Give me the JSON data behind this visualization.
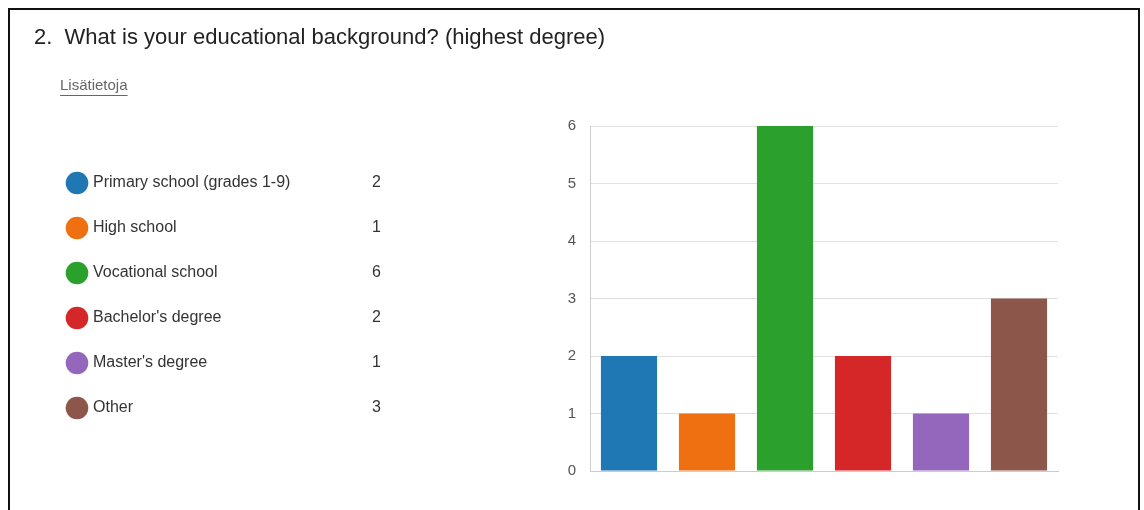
{
  "chart_data": {
    "type": "bar",
    "title": "2.  What is your educational background? (highest degree)",
    "subtitle": "Lisätietoja",
    "categories": [
      null,
      null,
      null,
      null,
      null,
      null
    ],
    "series": [
      {
        "name": "Primary school (grades 1-9)",
        "color": "#1f77b4",
        "values": [
          2,
          null,
          null,
          null,
          null,
          null
        ]
      },
      {
        "name": "High school",
        "color": "#ee7010",
        "values": [
          null,
          1,
          null,
          null,
          null,
          null
        ]
      },
      {
        "name": "Vocational school",
        "color": "#2ca02c",
        "values": [
          null,
          null,
          6,
          null,
          null,
          null
        ]
      },
      {
        "name": "Bachelor's degree",
        "color": "#d62728",
        "values": [
          null,
          null,
          null,
          2,
          null,
          null
        ]
      },
      {
        "name": "Master's degree",
        "color": "#9467bd",
        "values": [
          null,
          null,
          null,
          null,
          1,
          null
        ]
      },
      {
        "name": "Other",
        "color": "#8c564b",
        "values": [
          null,
          null,
          null,
          null,
          null,
          3
        ]
      }
    ],
    "annotations": [
      "2",
      "1",
      "6",
      "2",
      "1",
      "3"
    ],
    "ylim": [
      0,
      6
    ],
    "yticks": [
      0,
      1,
      2,
      3,
      4,
      5,
      6
    ],
    "grid": "y",
    "legend": "left",
    "tick_labels": "y"
  }
}
